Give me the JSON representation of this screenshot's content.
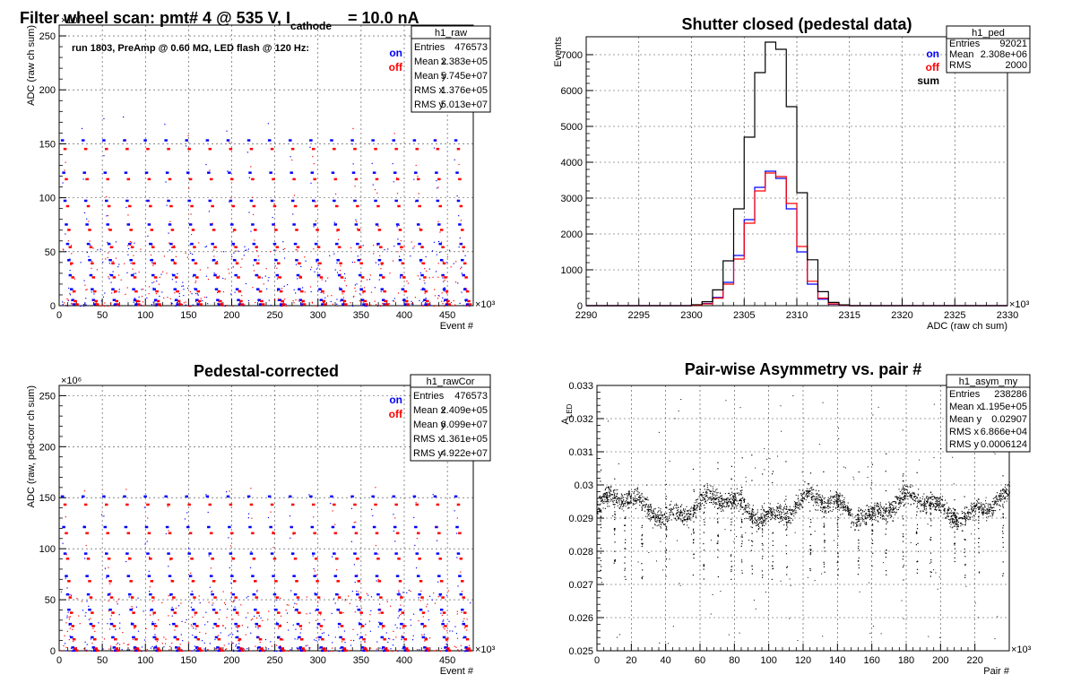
{
  "chart_data": [
    {
      "id": "raw",
      "type": "scatter",
      "title_parts": [
        "Filter wheel scan: pmt#   4 @   535 V, I",
        "cathode",
        "= 10.0 nA"
      ],
      "annotation": "run 1803, PreAmp @ 0.60 MΩ, LED flash @  120 Hz:",
      "xlabel": "Event #",
      "ylabel": "ADC (raw ch sum)",
      "xlim": [
        0,
        480
      ],
      "ylim": [
        0,
        260
      ],
      "x_exponent": "×10³",
      "y_exponent": "×10⁶",
      "xticks": [
        0,
        50,
        100,
        150,
        200,
        250,
        300,
        350,
        400,
        450
      ],
      "yticks": [
        0,
        50,
        100,
        150,
        200,
        250
      ],
      "grid": true,
      "legend_placement": "top-right",
      "series": [
        {
          "name": "on",
          "color": "#0000ff",
          "levels": [
            153,
            123,
            97,
            75,
            57,
            42,
            28,
            15,
            5,
            1
          ]
        },
        {
          "name": "off",
          "color": "#ff0000",
          "levels": [
            145,
            117,
            92,
            70,
            54,
            39,
            26,
            13,
            4,
            1
          ]
        }
      ],
      "stats": {
        "name": "h1_raw",
        "rows": [
          [
            "Entries",
            "476573"
          ],
          [
            "Mean x",
            "2.383e+05"
          ],
          [
            "Mean y",
            "5.745e+07"
          ],
          [
            "RMS x",
            "1.376e+05"
          ],
          [
            "RMS y",
            "5.013e+07"
          ]
        ]
      }
    },
    {
      "id": "ped",
      "type": "line",
      "title": "Shutter closed (pedestal data)",
      "xlabel": "ADC (raw ch sum)",
      "ylabel": "Events",
      "xlim": [
        2290,
        2330
      ],
      "ylim": [
        0,
        7500
      ],
      "x_exponent": "×10³",
      "xticks": [
        2290,
        2295,
        2300,
        2305,
        2310,
        2315,
        2320,
        2325,
        2330
      ],
      "yticks": [
        0,
        1000,
        2000,
        3000,
        4000,
        5000,
        6000,
        7000
      ],
      "grid": true,
      "legend_placement": "top-right",
      "x": [
        2300.5,
        2301.5,
        2302.5,
        2303.5,
        2304.5,
        2305.5,
        2306.5,
        2307.5,
        2308.5,
        2309.5,
        2310.5,
        2311.5,
        2312.5,
        2313.5,
        2314.5
      ],
      "series": [
        {
          "name": "on",
          "color": "#0000ff",
          "values": [
            15,
            60,
            230,
            650,
            1400,
            2400,
            3300,
            3750,
            3550,
            2700,
            1500,
            600,
            180,
            40,
            10
          ]
        },
        {
          "name": "off",
          "color": "#ff0000",
          "values": [
            12,
            50,
            210,
            600,
            1300,
            2300,
            3200,
            3700,
            3600,
            2850,
            1650,
            680,
            210,
            50,
            12
          ]
        },
        {
          "name": "sum",
          "color": "#000000",
          "values": [
            27,
            110,
            440,
            1250,
            2700,
            4700,
            6500,
            7350,
            7150,
            5550,
            3150,
            1280,
            390,
            90,
            22
          ]
        }
      ],
      "stats": {
        "name": "h1_ped",
        "rows": [
          [
            "Entries",
            "92021"
          ],
          [
            "Mean",
            "2.308e+06"
          ],
          [
            "RMS",
            "2000"
          ]
        ]
      }
    },
    {
      "id": "rawCor",
      "type": "scatter",
      "title": "Pedestal-corrected",
      "xlabel": "Event #",
      "ylabel": "ADC (raw, ped-corr ch sum)",
      "xlim": [
        0,
        480
      ],
      "ylim": [
        0,
        260
      ],
      "x_exponent": "×10³",
      "y_exponent": "×10⁶",
      "xticks": [
        0,
        50,
        100,
        150,
        200,
        250,
        300,
        350,
        400,
        450
      ],
      "yticks": [
        0,
        50,
        100,
        150,
        200,
        250
      ],
      "grid": true,
      "legend_placement": "top-right",
      "series": [
        {
          "name": "on",
          "color": "#0000ff",
          "levels": [
            151,
            121,
            95,
            73,
            55,
            40,
            26,
            13,
            3,
            0
          ]
        },
        {
          "name": "off",
          "color": "#ff0000",
          "levels": [
            143,
            115,
            90,
            68,
            52,
            37,
            24,
            11,
            2,
            0
          ]
        }
      ],
      "stats": {
        "name": "h1_rawCor",
        "rows": [
          [
            "Entries",
            "476573"
          ],
          [
            "Mean x",
            "2.409e+05"
          ],
          [
            "Mean y",
            "6.099e+07"
          ],
          [
            "RMS x",
            "1.361e+05"
          ],
          [
            "RMS y",
            "4.922e+07"
          ]
        ]
      }
    },
    {
      "id": "asym",
      "type": "scatter",
      "title": "Pair-wise Asymmetry vs. pair #",
      "xlabel": "Pair #",
      "ylabel_parts": [
        "A",
        "LED"
      ],
      "xlim": [
        0,
        240
      ],
      "ylim": [
        0.025,
        0.033
      ],
      "x_exponent": "×10³",
      "xticks": [
        0,
        20,
        40,
        60,
        80,
        100,
        120,
        140,
        160,
        180,
        200,
        220
      ],
      "yticks": [
        0.025,
        0.026,
        0.027,
        0.028,
        0.029,
        0.03,
        0.031,
        0.032,
        0.033
      ],
      "ytick_labels": [
        "0.025",
        "0.026",
        "0.027",
        "0.028",
        "0.029",
        "0.03",
        "0.031",
        "0.032",
        "0.033"
      ],
      "grid": true,
      "band_center": 0.02935,
      "band_halfwidth": 0.0005,
      "dips_x": [
        2,
        10,
        16,
        26,
        40,
        56,
        62,
        70,
        78,
        84,
        90,
        96,
        102,
        110,
        124,
        132,
        140,
        152,
        160,
        168,
        178,
        186,
        194,
        208,
        214,
        222,
        236
      ],
      "stats": {
        "name": "h1_asym_my",
        "rows": [
          [
            "Entries",
            "238286"
          ],
          [
            "Mean x",
            "1.195e+05"
          ],
          [
            "Mean y",
            "0.02907"
          ],
          [
            "RMS x",
            "6.866e+04"
          ],
          [
            "RMS y",
            "0.0006124"
          ]
        ]
      }
    }
  ]
}
